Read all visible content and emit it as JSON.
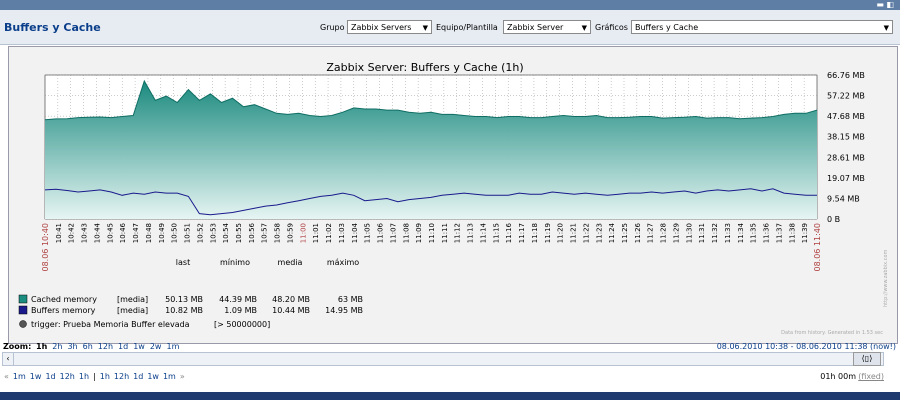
{
  "header": {
    "title": "Buffers y Cache",
    "grupo_label": "Grupo",
    "grupo_value": "Zabbix Servers",
    "equipo_label": "Equipo/Plantilla",
    "equipo_value": "Zabbix Server",
    "graficos_label": "Gráficos",
    "graficos_value": "Buffers y Cache"
  },
  "graph": {
    "title": "Zabbix Server: Buffers y Cache  (1h)",
    "y_ticks": [
      "66.76 MB",
      "57.22 MB",
      "47.68 MB",
      "38.15 MB",
      "28.61 MB",
      "19.07 MB",
      "9.54 MB",
      "0 B"
    ],
    "x_ticks": [
      "10:41",
      "10:42",
      "10:43",
      "10:44",
      "10:45",
      "10:46",
      "10:47",
      "10:48",
      "10:49",
      "10:50",
      "10:51",
      "10:52",
      "10:53",
      "10:54",
      "10:55",
      "10:56",
      "10:57",
      "10:58",
      "10:59",
      "11:00",
      "11:01",
      "11:02",
      "11:03",
      "11:04",
      "11:05",
      "11:06",
      "11:07",
      "11:08",
      "11:09",
      "11:10",
      "11:11",
      "11:12",
      "11:13",
      "11:14",
      "11:15",
      "11:16",
      "11:17",
      "11:18",
      "11:19",
      "11:20",
      "11:21",
      "11:22",
      "11:23",
      "11:24",
      "11:25",
      "11:26",
      "11:27",
      "11:28",
      "11:29",
      "11:30",
      "11:31",
      "11:32",
      "11:33",
      "11:34",
      "11:35",
      "11:36",
      "11:37",
      "11:38",
      "11:39"
    ],
    "start_label": "08.06 10:40",
    "end_label": "08.06 11:40",
    "watermark": "http://www.zabbix.com",
    "data_note": "Data from history. Generated in 1.53 sec",
    "legend_headers": [
      "last",
      "mínimo",
      "media",
      "máximo"
    ],
    "legend_rows": [
      {
        "name": "Cached memory",
        "type": "[media]",
        "last": "50.13 MB",
        "min": "44.39 MB",
        "avg": "48.20 MB",
        "max": "63 MB",
        "color": "#1a8c80"
      },
      {
        "name": "Buffers memory",
        "type": "[media]",
        "last": "10.82 MB",
        "min": "1.09 MB",
        "avg": "10.44 MB",
        "max": "14.95 MB",
        "color": "#1a1a8c"
      }
    ],
    "trigger_text": "trigger: Prueba Memoria Buffer elevada",
    "trigger_value": "[> 50000000]",
    "trigger_color": "#555555"
  },
  "zoom": {
    "label": "Zoom:",
    "options": [
      "1h",
      "2h",
      "3h",
      "6h",
      "12h",
      "1d",
      "1w",
      "2w",
      "1m"
    ],
    "range": "08.06.2010 10:38  -  08.06.2010 11:38 (now!)"
  },
  "nav": {
    "back_arrows": "«",
    "back": [
      "1m",
      "1w",
      "1d",
      "12h",
      "1h"
    ],
    "sep": "|",
    "forward": [
      "1h",
      "12h",
      "1d",
      "1w",
      "1m"
    ],
    "fwd_arrows": "»",
    "period": "01h 00m",
    "fixed": "(fixed)"
  },
  "chart_data": {
    "type": "area",
    "title": "Zabbix Server: Buffers y Cache  (1h)",
    "x_start": "08.06 10:40",
    "x_end": "08.06 11:40",
    "ylim_mb": [
      0,
      66.76
    ],
    "series": [
      {
        "name": "Cached memory",
        "color": "#1a8c80",
        "values_mb": [
          46.0,
          46.4,
          46.5,
          47.0,
          47.2,
          47.3,
          47.0,
          47.5,
          48.0,
          64.0,
          55.0,
          57.0,
          54.0,
          60.0,
          55.0,
          58.0,
          54.0,
          56.0,
          52.0,
          53.0,
          51.0,
          49.0,
          48.5,
          49.0,
          48.0,
          47.5,
          48.0,
          49.5,
          51.5,
          51.0,
          51.0,
          50.5,
          50.5,
          49.5,
          49.0,
          49.5,
          48.5,
          48.5,
          48.0,
          47.5,
          47.5,
          47.0,
          47.5,
          47.5,
          47.0,
          47.0,
          47.5,
          48.0,
          47.5,
          47.5,
          48.0,
          47.0,
          47.0,
          47.2,
          47.5,
          47.5,
          46.8,
          47.0,
          47.2,
          47.5,
          46.8,
          47.0,
          47.0,
          46.5,
          46.8,
          47.0,
          47.5,
          48.5,
          49.0,
          49.0,
          50.5
        ]
      },
      {
        "name": "Buffers memory",
        "color": "#1a1a8c",
        "values_mb": [
          13.5,
          13.8,
          13.2,
          12.5,
          13.0,
          13.5,
          12.5,
          11.0,
          12.0,
          11.5,
          12.5,
          12.0,
          12.0,
          10.5,
          2.5,
          2.0,
          2.5,
          3.0,
          4.0,
          5.0,
          6.0,
          6.5,
          7.5,
          8.5,
          9.5,
          10.5,
          11.0,
          12.0,
          11.0,
          8.5,
          9.0,
          9.5,
          8.0,
          9.0,
          9.5,
          10.0,
          11.0,
          11.5,
          12.0,
          11.5,
          11.0,
          11.0,
          11.0,
          12.0,
          11.5,
          11.5,
          12.5,
          12.0,
          11.5,
          12.0,
          11.5,
          11.0,
          11.5,
          12.0,
          12.0,
          12.5,
          12.0,
          12.5,
          13.0,
          12.0,
          13.0,
          13.5,
          13.0,
          13.5,
          14.0,
          13.0,
          14.0,
          12.0,
          11.5,
          11.0,
          11.0
        ]
      }
    ],
    "trigger_threshold": "> 50000000"
  }
}
